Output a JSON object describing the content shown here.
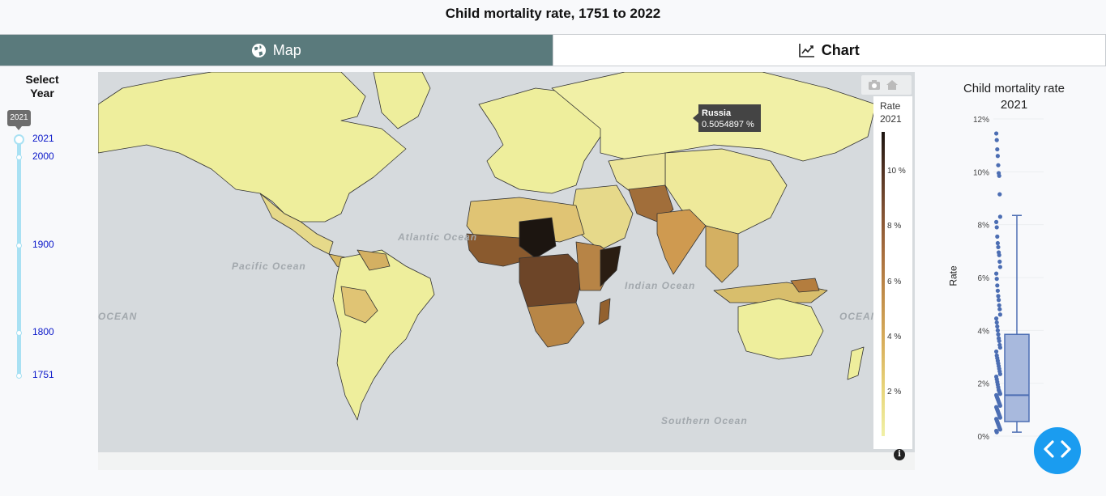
{
  "page": {
    "title": "Child mortality rate, 1751 to 2022"
  },
  "tabs": [
    {
      "label": "Map",
      "icon": "globe-icon",
      "active": true
    },
    {
      "label": "Chart",
      "icon": "line-chart-icon",
      "active": false
    }
  ],
  "year_slider": {
    "title": "Select Year",
    "title_line1": "Select",
    "title_line2": "Year",
    "selected": "2021",
    "marks": [
      "2021",
      "2000",
      "1900",
      "1800",
      "1751"
    ]
  },
  "map": {
    "ocean_labels": {
      "atlantic": "Atlantic Ocean",
      "pacific": "Pacific Ocean",
      "indian": "Indian Ocean",
      "southern": "Southern Ocean",
      "ocean_left": "OCEAN",
      "ocean_right": "OCEAN"
    },
    "tooltip": {
      "country": "Russia",
      "value": "0.5054897 %"
    },
    "colorbar": {
      "title_line1": "Rate",
      "title_line2": "2021",
      "ticks": [
        "10 %",
        "8 %",
        "6 %",
        "4 %",
        "2 %"
      ],
      "scale_colors": [
        "#f0f0a6",
        "#d9b05d",
        "#a86e3e",
        "#4f3122",
        "#1c1510"
      ]
    },
    "colors": {
      "ocean": "#d6dadd",
      "land_low": "#eeee9c",
      "border": "#333333"
    }
  },
  "chart_data": {
    "type": "box",
    "title": "Child mortality rate",
    "subtitle": "2021",
    "ylabel": "Rate",
    "ylim": [
      0,
      12
    ],
    "y_ticks": [
      "0%",
      "2%",
      "4%",
      "6%",
      "8%",
      "10%",
      "12%"
    ],
    "box": {
      "min": 0.15,
      "q1": 0.55,
      "median": 1.55,
      "q3": 3.85,
      "upper_whisker": 8.35
    },
    "points": [
      11.45,
      11.2,
      10.85,
      10.6,
      10.25,
      9.95,
      9.85,
      9.15,
      8.3,
      8.1,
      7.9,
      7.55,
      7.3,
      7.15,
      6.95,
      6.85,
      6.6,
      6.4,
      6.15,
      5.95,
      5.7,
      5.5,
      5.3,
      5.15,
      4.95,
      4.8,
      4.6,
      4.45,
      4.3,
      4.15,
      4.0,
      3.85,
      3.7,
      3.6,
      3.45,
      3.35,
      3.2,
      3.05,
      2.95,
      2.85,
      2.75,
      2.65,
      2.55,
      2.45,
      2.35,
      2.25,
      2.15,
      2.05,
      1.95,
      1.85,
      1.75,
      1.7,
      1.65,
      1.6,
      1.55,
      1.5,
      1.45,
      1.4,
      1.35,
      1.3,
      1.25,
      1.2,
      1.15,
      1.1,
      1.05,
      1.0,
      0.95,
      0.9,
      0.85,
      0.8,
      0.75,
      0.7,
      0.65,
      0.6,
      0.55,
      0.5,
      0.45,
      0.4,
      0.35,
      0.3,
      0.25,
      0.2,
      0.15
    ],
    "color": "#4c6eb3",
    "box_fill": "#a8b9dd"
  },
  "fab": {
    "icon": "code-icon"
  }
}
